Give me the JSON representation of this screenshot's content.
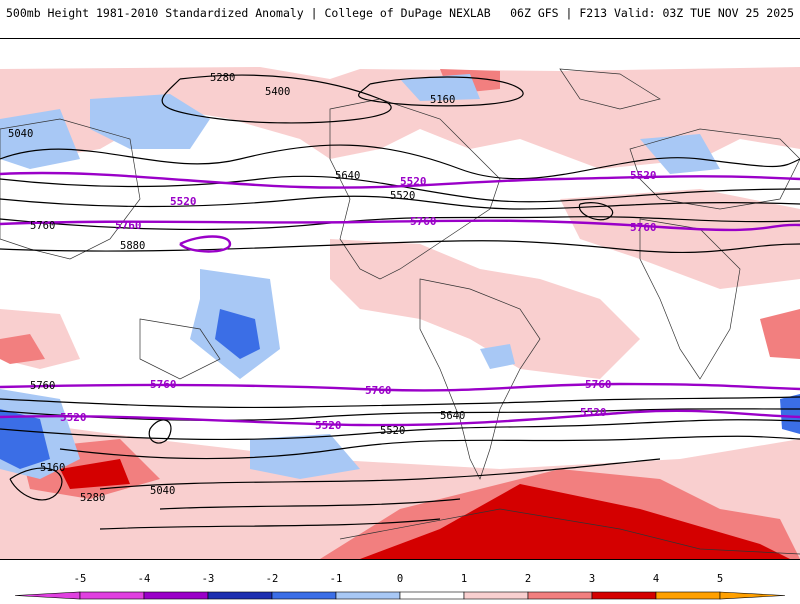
{
  "header": {
    "left_title": "500mb Height 1981-2010 Standardized Anomaly | College of DuPage NEXLAB",
    "right_title": "06Z GFS | F213 Valid: 03Z TUE NOV 25 2025"
  },
  "contour_labels": [
    "5280",
    "5400",
    "5160",
    "5040",
    "5640",
    "5520",
    "5760",
    "5880"
  ],
  "colorbar": {
    "ticks": [
      "-5",
      "-4",
      "-3",
      "-2",
      "-1",
      "0",
      "1",
      "2",
      "3",
      "4",
      "5"
    ],
    "colors": [
      "#e040e0",
      "#9a00c8",
      "#1e2fb0",
      "#3b6ee6",
      "#a8c8f5",
      "#ffffff",
      "#f9cfcf",
      "#f27f7f",
      "#d40000",
      "#ffa000"
    ]
  }
}
